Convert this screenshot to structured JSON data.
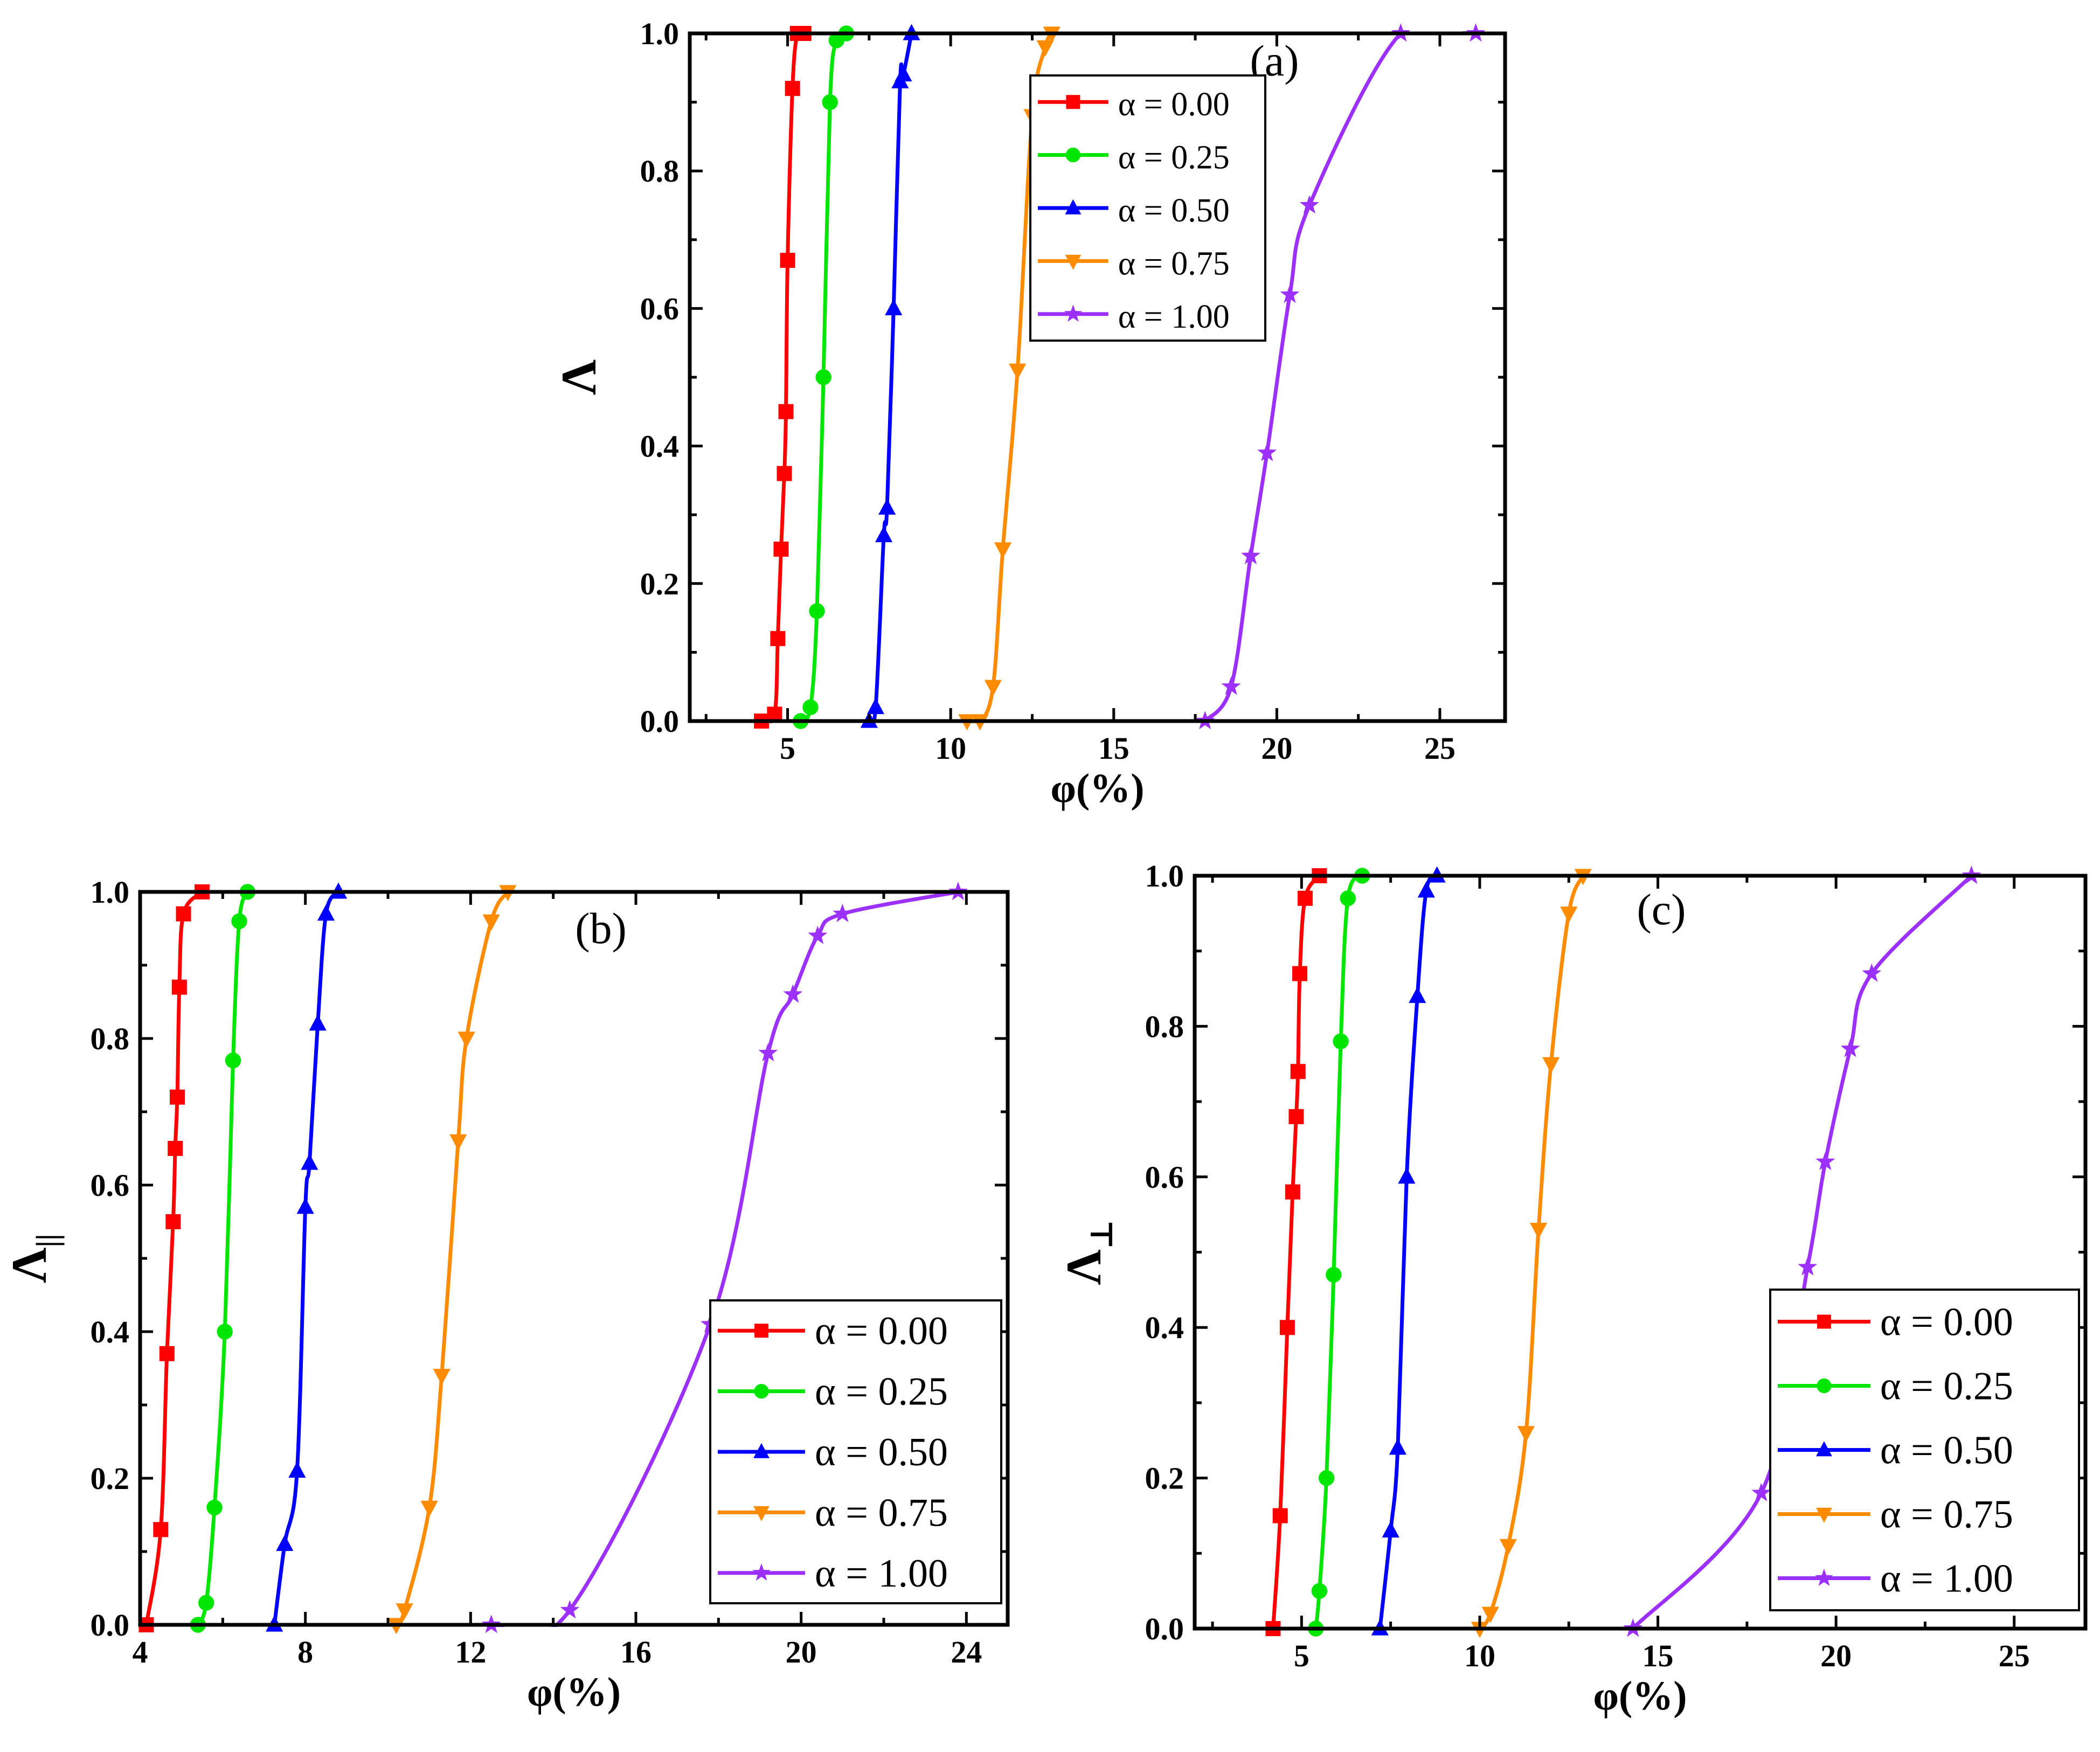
{
  "colors": {
    "alpha_000": "#ff0000",
    "alpha_025": "#00e600",
    "alpha_050": "#0000ff",
    "alpha_075": "#ff8c00",
    "alpha_100": "#9b30ff"
  },
  "chart_data": [
    {
      "type": "line",
      "id": "a",
      "panel_label": "(a)",
      "xlabel": "φ(%)",
      "ylabel": "Λ",
      "ylabel_sub": "",
      "xlim": [
        2,
        27
      ],
      "ylim": [
        0,
        1
      ],
      "xticks": [
        5,
        10,
        15,
        20,
        25
      ],
      "yticks": [
        0.0,
        0.2,
        0.4,
        0.6,
        0.8,
        1.0
      ],
      "legend_position": "top-right",
      "series": [
        {
          "name": "α = 0.00",
          "color": "#ff0000",
          "marker": "square",
          "x": [
            4.2,
            4.6,
            4.7,
            4.8,
            4.9,
            4.95,
            5.0,
            5.15,
            5.3,
            5.5
          ],
          "y": [
            0.0,
            0.01,
            0.12,
            0.25,
            0.36,
            0.45,
            0.67,
            0.92,
            1.0,
            1.0
          ]
        },
        {
          "name": "α = 0.25",
          "color": "#00e600",
          "marker": "circle",
          "x": [
            5.4,
            5.7,
            5.9,
            6.1,
            6.3,
            6.5,
            6.8
          ],
          "y": [
            0.0,
            0.02,
            0.16,
            0.5,
            0.9,
            0.99,
            1.0
          ]
        },
        {
          "name": "α = 0.50",
          "color": "#0000ff",
          "marker": "triangle-up",
          "x": [
            7.5,
            7.7,
            7.95,
            8.05,
            8.25,
            8.45,
            8.55,
            8.8
          ],
          "y": [
            0.0,
            0.02,
            0.27,
            0.31,
            0.6,
            0.93,
            0.94,
            1.0
          ]
        },
        {
          "name": "α = 0.75",
          "color": "#ff8c00",
          "marker": "triangle-down",
          "x": [
            10.5,
            10.9,
            11.3,
            11.6,
            12.05,
            12.5,
            12.9,
            13.1
          ],
          "y": [
            0.0,
            0.0,
            0.05,
            0.25,
            0.51,
            0.88,
            0.98,
            1.0
          ]
        },
        {
          "name": "α = 1.00",
          "color": "#9b30ff",
          "marker": "star",
          "x": [
            17.8,
            18.6,
            19.2,
            19.7,
            20.4,
            21.0,
            23.8,
            26.1
          ],
          "y": [
            0.0,
            0.05,
            0.24,
            0.39,
            0.62,
            0.75,
            1.0,
            1.0
          ]
        }
      ]
    },
    {
      "type": "line",
      "id": "b",
      "panel_label": "(b)",
      "xlabel": "φ(%)",
      "ylabel": "Λ",
      "ylabel_sub": "||",
      "xlim": [
        4,
        25
      ],
      "ylim": [
        0,
        1
      ],
      "xticks": [
        4,
        8,
        12,
        16,
        20,
        24
      ],
      "yticks": [
        0.0,
        0.2,
        0.4,
        0.6,
        0.8,
        1.0
      ],
      "legend_position": "bottom-right",
      "series": [
        {
          "name": "α = 0.00",
          "color": "#ff0000",
          "marker": "square",
          "x": [
            4.15,
            4.5,
            4.65,
            4.8,
            4.85,
            4.9,
            4.95,
            5.05,
            5.5
          ],
          "y": [
            0.0,
            0.13,
            0.37,
            0.55,
            0.65,
            0.72,
            0.87,
            0.97,
            1.0
          ]
        },
        {
          "name": "α = 0.25",
          "color": "#00e600",
          "marker": "circle",
          "x": [
            5.4,
            5.6,
            5.8,
            6.05,
            6.25,
            6.4,
            6.6
          ],
          "y": [
            0.0,
            0.03,
            0.16,
            0.4,
            0.77,
            0.96,
            1.0
          ]
        },
        {
          "name": "α = 0.50",
          "color": "#0000ff",
          "marker": "triangle-up",
          "x": [
            7.25,
            7.5,
            7.8,
            8.0,
            8.1,
            8.3,
            8.5,
            8.8
          ],
          "y": [
            0.0,
            0.11,
            0.21,
            0.57,
            0.63,
            0.82,
            0.97,
            1.0
          ]
        },
        {
          "name": "α = 0.75",
          "color": "#ff8c00",
          "marker": "triangle-down",
          "x": [
            10.2,
            10.4,
            11.0,
            11.3,
            11.7,
            11.9,
            12.5,
            12.9
          ],
          "y": [
            0.0,
            0.02,
            0.16,
            0.34,
            0.66,
            0.8,
            0.96,
            1.0
          ]
        },
        {
          "name": "α = 1.00",
          "color": "#9b30ff",
          "marker": "star",
          "x": [
            12.5,
            14.4,
            17.8,
            19.2,
            19.8,
            20.4,
            21.0,
            23.8
          ],
          "y": [
            0.0,
            0.02,
            0.41,
            0.78,
            0.86,
            0.94,
            0.97,
            1.0
          ]
        }
      ]
    },
    {
      "type": "line",
      "id": "c",
      "panel_label": "(c)",
      "xlabel": "φ(%)",
      "ylabel": "Λ",
      "ylabel_sub": "⊥",
      "xlim": [
        2,
        27
      ],
      "ylim": [
        0,
        1
      ],
      "xticks": [
        5,
        10,
        15,
        20,
        25
      ],
      "yticks": [
        0.0,
        0.2,
        0.4,
        0.6,
        0.8,
        1.0
      ],
      "legend_position": "bottom-right",
      "series": [
        {
          "name": "α = 0.00",
          "color": "#ff0000",
          "marker": "square",
          "x": [
            4.2,
            4.4,
            4.6,
            4.75,
            4.85,
            4.9,
            4.95,
            5.1,
            5.5
          ],
          "y": [
            0.0,
            0.15,
            0.4,
            0.58,
            0.68,
            0.74,
            0.87,
            0.97,
            1.0
          ]
        },
        {
          "name": "α = 0.25",
          "color": "#00e600",
          "marker": "circle",
          "x": [
            5.4,
            5.5,
            5.7,
            5.9,
            6.1,
            6.3,
            6.7
          ],
          "y": [
            0.0,
            0.05,
            0.2,
            0.47,
            0.78,
            0.97,
            1.0
          ]
        },
        {
          "name": "α = 0.50",
          "color": "#0000ff",
          "marker": "triangle-up",
          "x": [
            7.2,
            7.5,
            7.7,
            7.95,
            8.25,
            8.5,
            8.8
          ],
          "y": [
            0.0,
            0.13,
            0.24,
            0.6,
            0.84,
            0.98,
            1.0
          ]
        },
        {
          "name": "α = 0.75",
          "color": "#ff8c00",
          "marker": "triangle-down",
          "x": [
            10.0,
            10.3,
            10.8,
            11.3,
            11.65,
            12.0,
            12.5,
            12.9
          ],
          "y": [
            0.0,
            0.02,
            0.11,
            0.26,
            0.53,
            0.75,
            0.95,
            1.0
          ]
        },
        {
          "name": "α = 1.00",
          "color": "#9b30ff",
          "marker": "star",
          "x": [
            14.3,
            17.9,
            19.2,
            19.7,
            20.4,
            21.0,
            23.8
          ],
          "y": [
            0.0,
            0.18,
            0.48,
            0.62,
            0.77,
            0.87,
            1.0
          ]
        }
      ]
    }
  ]
}
